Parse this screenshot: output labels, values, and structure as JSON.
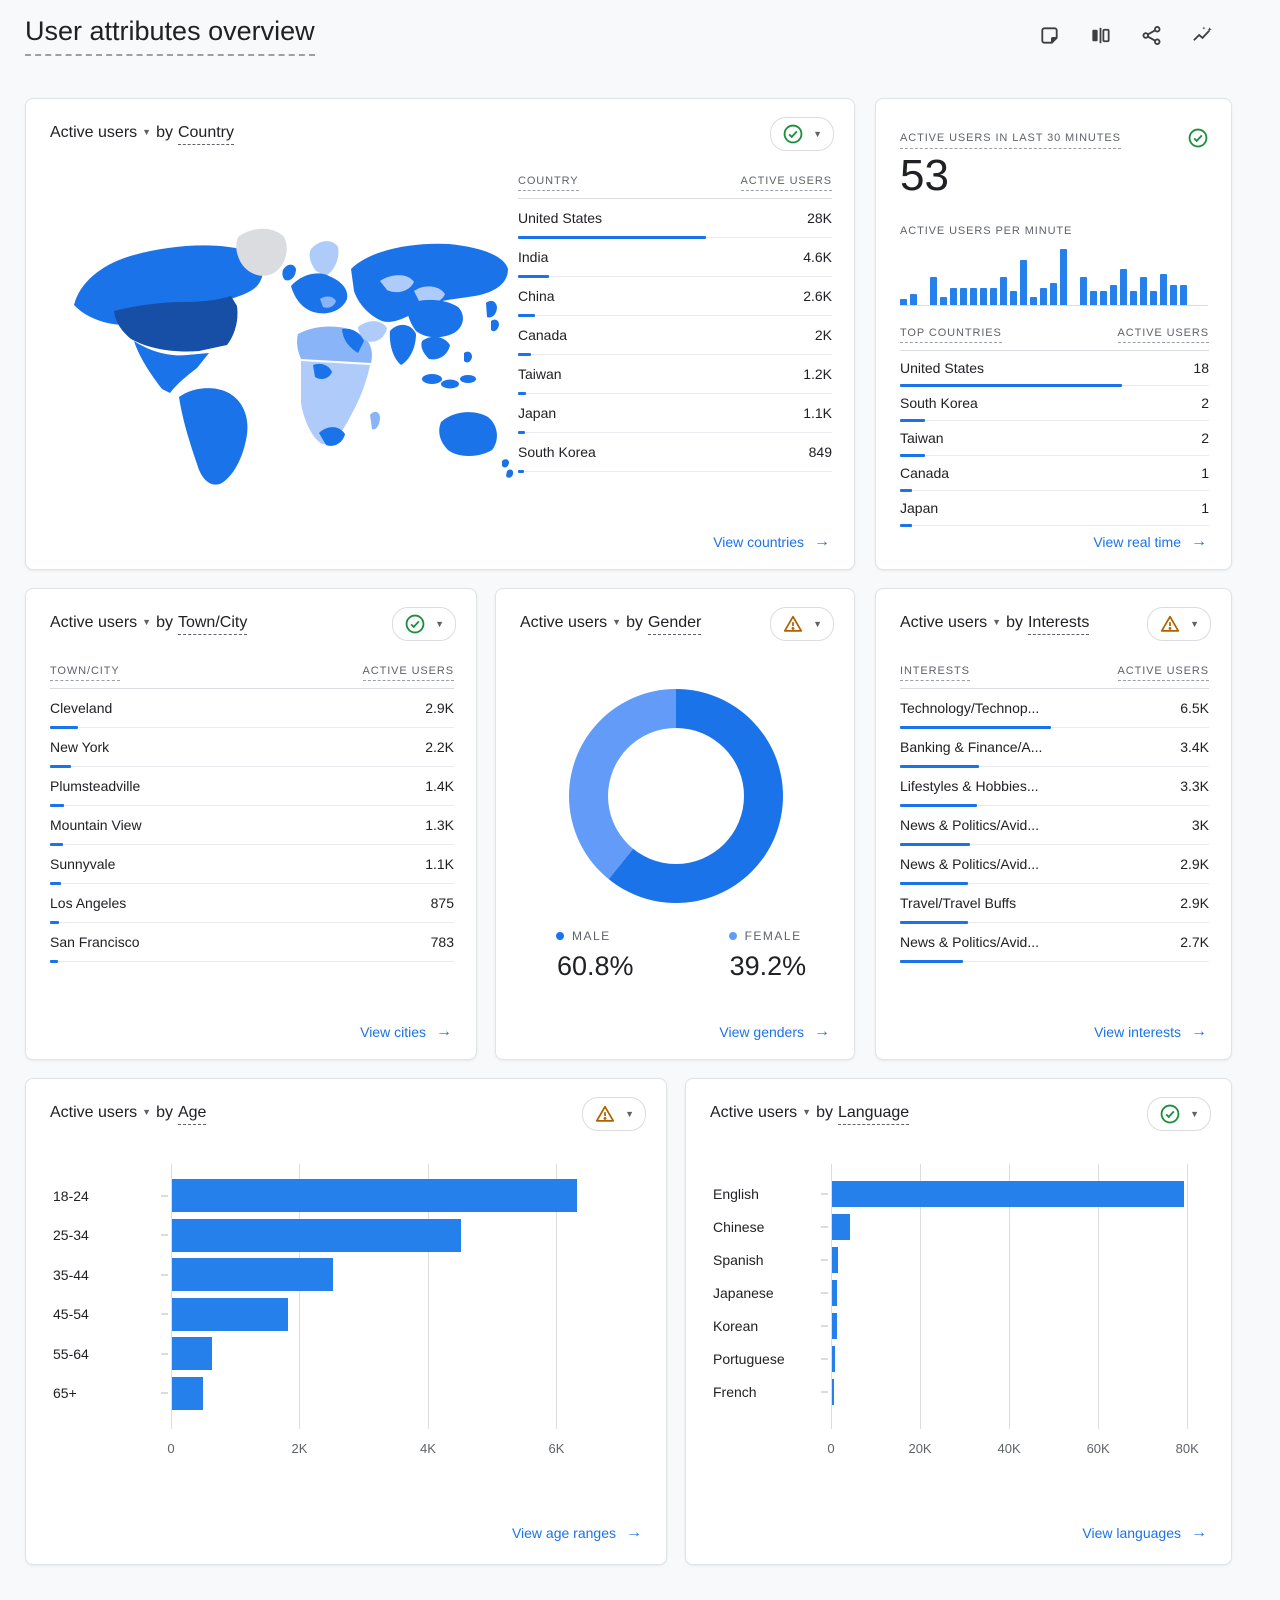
{
  "page": {
    "title": "User attributes overview"
  },
  "labels": {
    "active_users": "Active users",
    "by": "by"
  },
  "toolbar": {
    "icons": [
      {
        "name": "note-icon"
      },
      {
        "name": "compare-icon"
      },
      {
        "name": "share-icon"
      },
      {
        "name": "insights-icon"
      }
    ]
  },
  "colors": {
    "link_blue": "#1a73e8",
    "bar_blue": "#2680eb",
    "male_blue": "#1a73e8",
    "female_blue": "#639cf8",
    "ok_green": "#1e8e3e",
    "warn_orange": "#b06000",
    "map_dark": "#174ea6",
    "map_medium": "#1a73e8",
    "map_light": "#8ab4f8",
    "map_lighter": "#aecbfa",
    "map_nodata": "#dadce0"
  },
  "cards": {
    "country": {
      "dimension": "Country",
      "status": "ok",
      "columns": [
        "COUNTRY",
        "ACTIVE USERS"
      ],
      "rows": [
        {
          "label": "United States",
          "value": "28K"
        },
        {
          "label": "India",
          "value": "4.6K"
        },
        {
          "label": "China",
          "value": "2.6K"
        },
        {
          "label": "Canada",
          "value": "2K"
        },
        {
          "label": "Taiwan",
          "value": "1.2K"
        },
        {
          "label": "Japan",
          "value": "1.1K"
        },
        {
          "label": "South Korea",
          "value": "849"
        }
      ],
      "values": [
        28000,
        4600,
        2600,
        2000,
        1200,
        1100,
        849
      ],
      "bar_scale": 0.6,
      "link": "View countries"
    },
    "realtime": {
      "heading": "ACTIVE USERS IN LAST 30 MINUTES",
      "big_number": "53",
      "per_minute_label": "ACTIVE USERS PER MINUTE",
      "sparkline": [
        1,
        2,
        0,
        5,
        1.5,
        3,
        3,
        3,
        3,
        3,
        5,
        2.5,
        8,
        1.5,
        3,
        4,
        10,
        0,
        5,
        2.5,
        2.5,
        3.5,
        6.5,
        2.5,
        5,
        2.5,
        5.5,
        3.5,
        3.5,
        0
      ],
      "columns": [
        "TOP COUNTRIES",
        "ACTIVE USERS"
      ],
      "rows": [
        {
          "label": "United States",
          "value": "18"
        },
        {
          "label": "South Korea",
          "value": "2"
        },
        {
          "label": "Taiwan",
          "value": "2"
        },
        {
          "label": "Canada",
          "value": "1"
        },
        {
          "label": "Japan",
          "value": "1"
        }
      ],
      "values": [
        18,
        2,
        2,
        1,
        1
      ],
      "bar_scale": 0.72,
      "status": "ok",
      "link": "View real time"
    },
    "city": {
      "dimension": "Town/City",
      "status": "ok",
      "columns": [
        "TOWN/CITY",
        "ACTIVE USERS"
      ],
      "rows": [
        {
          "label": "Cleveland",
          "value": "2.9K"
        },
        {
          "label": "New York",
          "value": "2.2K"
        },
        {
          "label": "Plumsteadville",
          "value": "1.4K"
        },
        {
          "label": "Mountain View",
          "value": "1.3K"
        },
        {
          "label": "Sunnyvale",
          "value": "1.1K"
        },
        {
          "label": "Los Angeles",
          "value": "875"
        },
        {
          "label": "San Francisco",
          "value": "783"
        }
      ],
      "values": [
        2900,
        2200,
        1400,
        1300,
        1100,
        875,
        783
      ],
      "bar_scale": 0.07,
      "link": "View cities"
    },
    "gender": {
      "dimension": "Gender",
      "status": "warn",
      "slices": [
        {
          "label": "MALE",
          "pct": "60.8%",
          "value": 60.8,
          "color": "#1a73e8"
        },
        {
          "label": "FEMALE",
          "pct": "39.2%",
          "value": 39.2,
          "color": "#639cf8"
        }
      ],
      "link": "View genders"
    },
    "interests": {
      "dimension": "Interests",
      "status": "warn",
      "columns": [
        "INTERESTS",
        "ACTIVE USERS"
      ],
      "rows": [
        {
          "label": "Technology/Technop...",
          "value": "6.5K"
        },
        {
          "label": "Banking & Finance/A...",
          "value": "3.4K"
        },
        {
          "label": "Lifestyles & Hobbies...",
          "value": "3.3K"
        },
        {
          "label": "News & Politics/Avid...",
          "value": "3K"
        },
        {
          "label": "News & Politics/Avid...",
          "value": "2.9K"
        },
        {
          "label": "Travel/Travel Buffs",
          "value": "2.9K"
        },
        {
          "label": "News & Politics/Avid...",
          "value": "2.7K"
        }
      ],
      "values": [
        6500,
        3400,
        3300,
        3000,
        2900,
        2900,
        2700
      ],
      "bar_scale": 0.49,
      "link": "View interests"
    },
    "age": {
      "dimension": "Age",
      "status": "warn",
      "categories": [
        "18-24",
        "25-34",
        "35-44",
        "45-54",
        "55-64",
        "65+"
      ],
      "values": [
        6300,
        4500,
        2500,
        1800,
        620,
        480
      ],
      "ticks": [
        "0",
        "2K",
        "4K",
        "6K"
      ],
      "tick_values": [
        0,
        2000,
        4000,
        6000
      ],
      "xmax": 7160,
      "link": "View age ranges"
    },
    "language": {
      "dimension": "Language",
      "status": "ok",
      "categories": [
        "English",
        "Chinese",
        "Spanish",
        "Japanese",
        "Korean",
        "Portuguese",
        "French"
      ],
      "values": [
        79000,
        4000,
        1400,
        1200,
        1100,
        600,
        300
      ],
      "ticks": [
        "0",
        "20K",
        "40K",
        "60K",
        "80K"
      ],
      "tick_values": [
        0,
        20000,
        40000,
        60000,
        80000
      ],
      "xmax": 83100,
      "link": "View languages"
    }
  },
  "chart_data": [
    {
      "type": "table",
      "title": "Active users by Country",
      "columns": [
        "Country",
        "Active users"
      ],
      "rows": [
        [
          "United States",
          28000
        ],
        [
          "India",
          4600
        ],
        [
          "China",
          2600
        ],
        [
          "Canada",
          2000
        ],
        [
          "Taiwan",
          1200
        ],
        [
          "Japan",
          1100
        ],
        [
          "South Korea",
          849
        ]
      ]
    },
    {
      "type": "bar",
      "title": "Active users per minute (last 30 minutes)",
      "note": "relative heights, unlabeled axis",
      "values": [
        1,
        2,
        0,
        5,
        1.5,
        3,
        3,
        3,
        3,
        3,
        5,
        2.5,
        8,
        1.5,
        3,
        4,
        10,
        0,
        5,
        2.5,
        2.5,
        3.5,
        6.5,
        2.5,
        5,
        2.5,
        5.5,
        3.5,
        3.5,
        0
      ]
    },
    {
      "type": "table",
      "title": "Top countries (real time)",
      "columns": [
        "Top countries",
        "Active users"
      ],
      "rows": [
        [
          "United States",
          18
        ],
        [
          "South Korea",
          2
        ],
        [
          "Taiwan",
          2
        ],
        [
          "Canada",
          1
        ],
        [
          "Japan",
          1
        ]
      ]
    },
    {
      "type": "table",
      "title": "Active users by Town/City",
      "columns": [
        "Town/City",
        "Active users"
      ],
      "rows": [
        [
          "Cleveland",
          2900
        ],
        [
          "New York",
          2200
        ],
        [
          "Plumsteadville",
          1400
        ],
        [
          "Mountain View",
          1300
        ],
        [
          "Sunnyvale",
          1100
        ],
        [
          "Los Angeles",
          875
        ],
        [
          "San Francisco",
          783
        ]
      ]
    },
    {
      "type": "pie",
      "title": "Active users by Gender",
      "categories": [
        "Male",
        "Female"
      ],
      "values": [
        60.8,
        39.2
      ],
      "unit": "%"
    },
    {
      "type": "table",
      "title": "Active users by Interests",
      "columns": [
        "Interests",
        "Active users"
      ],
      "rows": [
        [
          "Technology/Technop...",
          6500
        ],
        [
          "Banking & Finance/A...",
          3400
        ],
        [
          "Lifestyles & Hobbies...",
          3300
        ],
        [
          "News & Politics/Avid...",
          3000
        ],
        [
          "News & Politics/Avid...",
          2900
        ],
        [
          "Travel/Travel Buffs",
          2900
        ],
        [
          "News & Politics/Avid...",
          2700
        ]
      ]
    },
    {
      "type": "bar",
      "title": "Active users by Age",
      "categories": [
        "18-24",
        "25-34",
        "35-44",
        "45-54",
        "55-64",
        "65+"
      ],
      "values": [
        6300,
        4500,
        2500,
        1800,
        620,
        480
      ],
      "xlim": [
        0,
        7160
      ],
      "ticks": [
        0,
        2000,
        4000,
        6000
      ]
    },
    {
      "type": "bar",
      "title": "Active users by Language",
      "categories": [
        "English",
        "Chinese",
        "Spanish",
        "Japanese",
        "Korean",
        "Portuguese",
        "French"
      ],
      "values": [
        79000,
        4000,
        1400,
        1200,
        1100,
        600,
        300
      ],
      "xlim": [
        0,
        83100
      ],
      "ticks": [
        0,
        20000,
        40000,
        60000,
        80000
      ]
    }
  ]
}
